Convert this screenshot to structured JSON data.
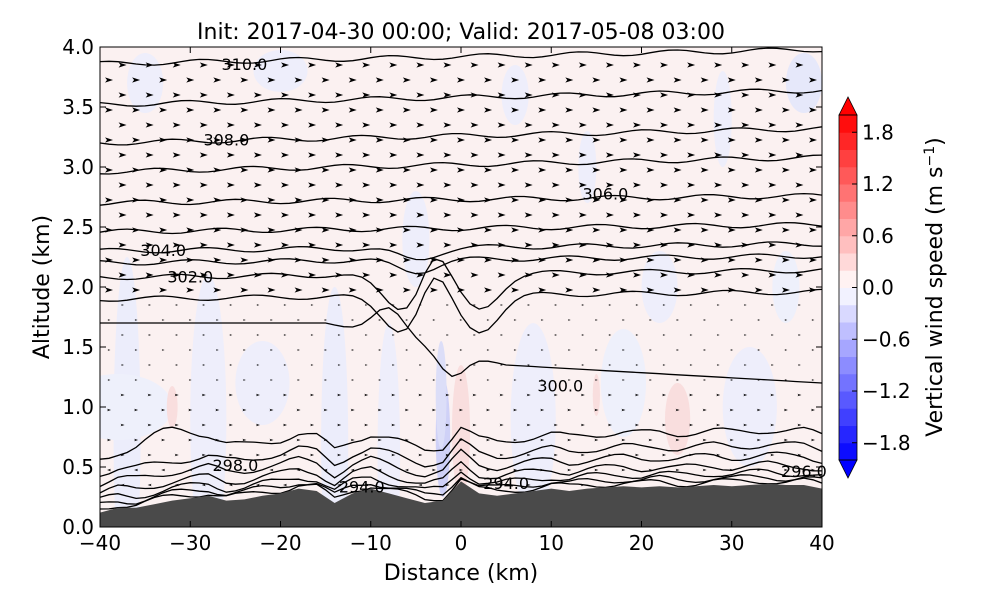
{
  "chart_data": {
    "type": "heatmap",
    "title": "Init: 2017-04-30 00:00; Valid: 2017-05-08 03:00",
    "xlabel": "Distance (km)",
    "ylabel": "Altitude (km)",
    "xlim": [
      -40,
      40
    ],
    "ylim": [
      0.0,
      4.0
    ],
    "x_ticks": [
      "−40",
      "−30",
      "−20",
      "−10",
      "0",
      "10",
      "20",
      "30",
      "40"
    ],
    "y_ticks": [
      "0.0",
      "0.5",
      "1.0",
      "1.5",
      "2.0",
      "2.5",
      "3.0",
      "3.5",
      "4.0"
    ],
    "colorbar": {
      "label": "Vertical wind speed (m s",
      "label_sup": "−1",
      "label_end": ")",
      "range": [
        -2.0,
        2.0
      ],
      "ticks": [
        "1.8",
        "1.2",
        "0.6",
        "0.0",
        "−0.6",
        "−1.2",
        "−1.8"
      ],
      "tick_values": [
        1.8,
        1.2,
        0.6,
        0.0,
        -0.6,
        -1.2,
        -1.8
      ],
      "colormap": "bwr",
      "extend": "both"
    },
    "terrain": {
      "color": "#4a4a4a",
      "x": [
        -40,
        -38,
        -36,
        -34,
        -32,
        -30,
        -28,
        -26,
        -24,
        -22,
        -20,
        -18,
        -16,
        -14,
        -12,
        -10,
        -8,
        -6,
        -4,
        -2,
        0,
        2,
        4,
        6,
        8,
        10,
        12,
        14,
        16,
        18,
        20,
        22,
        24,
        26,
        28,
        30,
        32,
        34,
        36,
        38,
        40
      ],
      "height": [
        0.12,
        0.16,
        0.16,
        0.19,
        0.22,
        0.24,
        0.26,
        0.22,
        0.23,
        0.26,
        0.28,
        0.32,
        0.3,
        0.2,
        0.28,
        0.32,
        0.28,
        0.24,
        0.2,
        0.22,
        0.38,
        0.28,
        0.26,
        0.28,
        0.3,
        0.32,
        0.3,
        0.32,
        0.33,
        0.34,
        0.33,
        0.34,
        0.33,
        0.34,
        0.35,
        0.34,
        0.35,
        0.36,
        0.35,
        0.35,
        0.32
      ]
    },
    "theta_contour_labels": [
      {
        "text": "310.0",
        "x": -24,
        "y": 3.85
      },
      {
        "text": "308.0",
        "x": -26,
        "y": 3.22
      },
      {
        "text": "306.0",
        "x": 16,
        "y": 2.77
      },
      {
        "text": "304.0",
        "x": -33,
        "y": 2.3
      },
      {
        "text": "302.0",
        "x": -30,
        "y": 2.08
      },
      {
        "text": "300.0",
        "x": 11,
        "y": 1.17
      },
      {
        "text": "298.0",
        "x": -25,
        "y": 0.51
      },
      {
        "text": "296.0",
        "x": 38,
        "y": 0.46
      },
      {
        "text": "294.0",
        "x": -11,
        "y": 0.33
      },
      {
        "text": "294.0",
        "x": 5,
        "y": 0.36
      }
    ]
  }
}
